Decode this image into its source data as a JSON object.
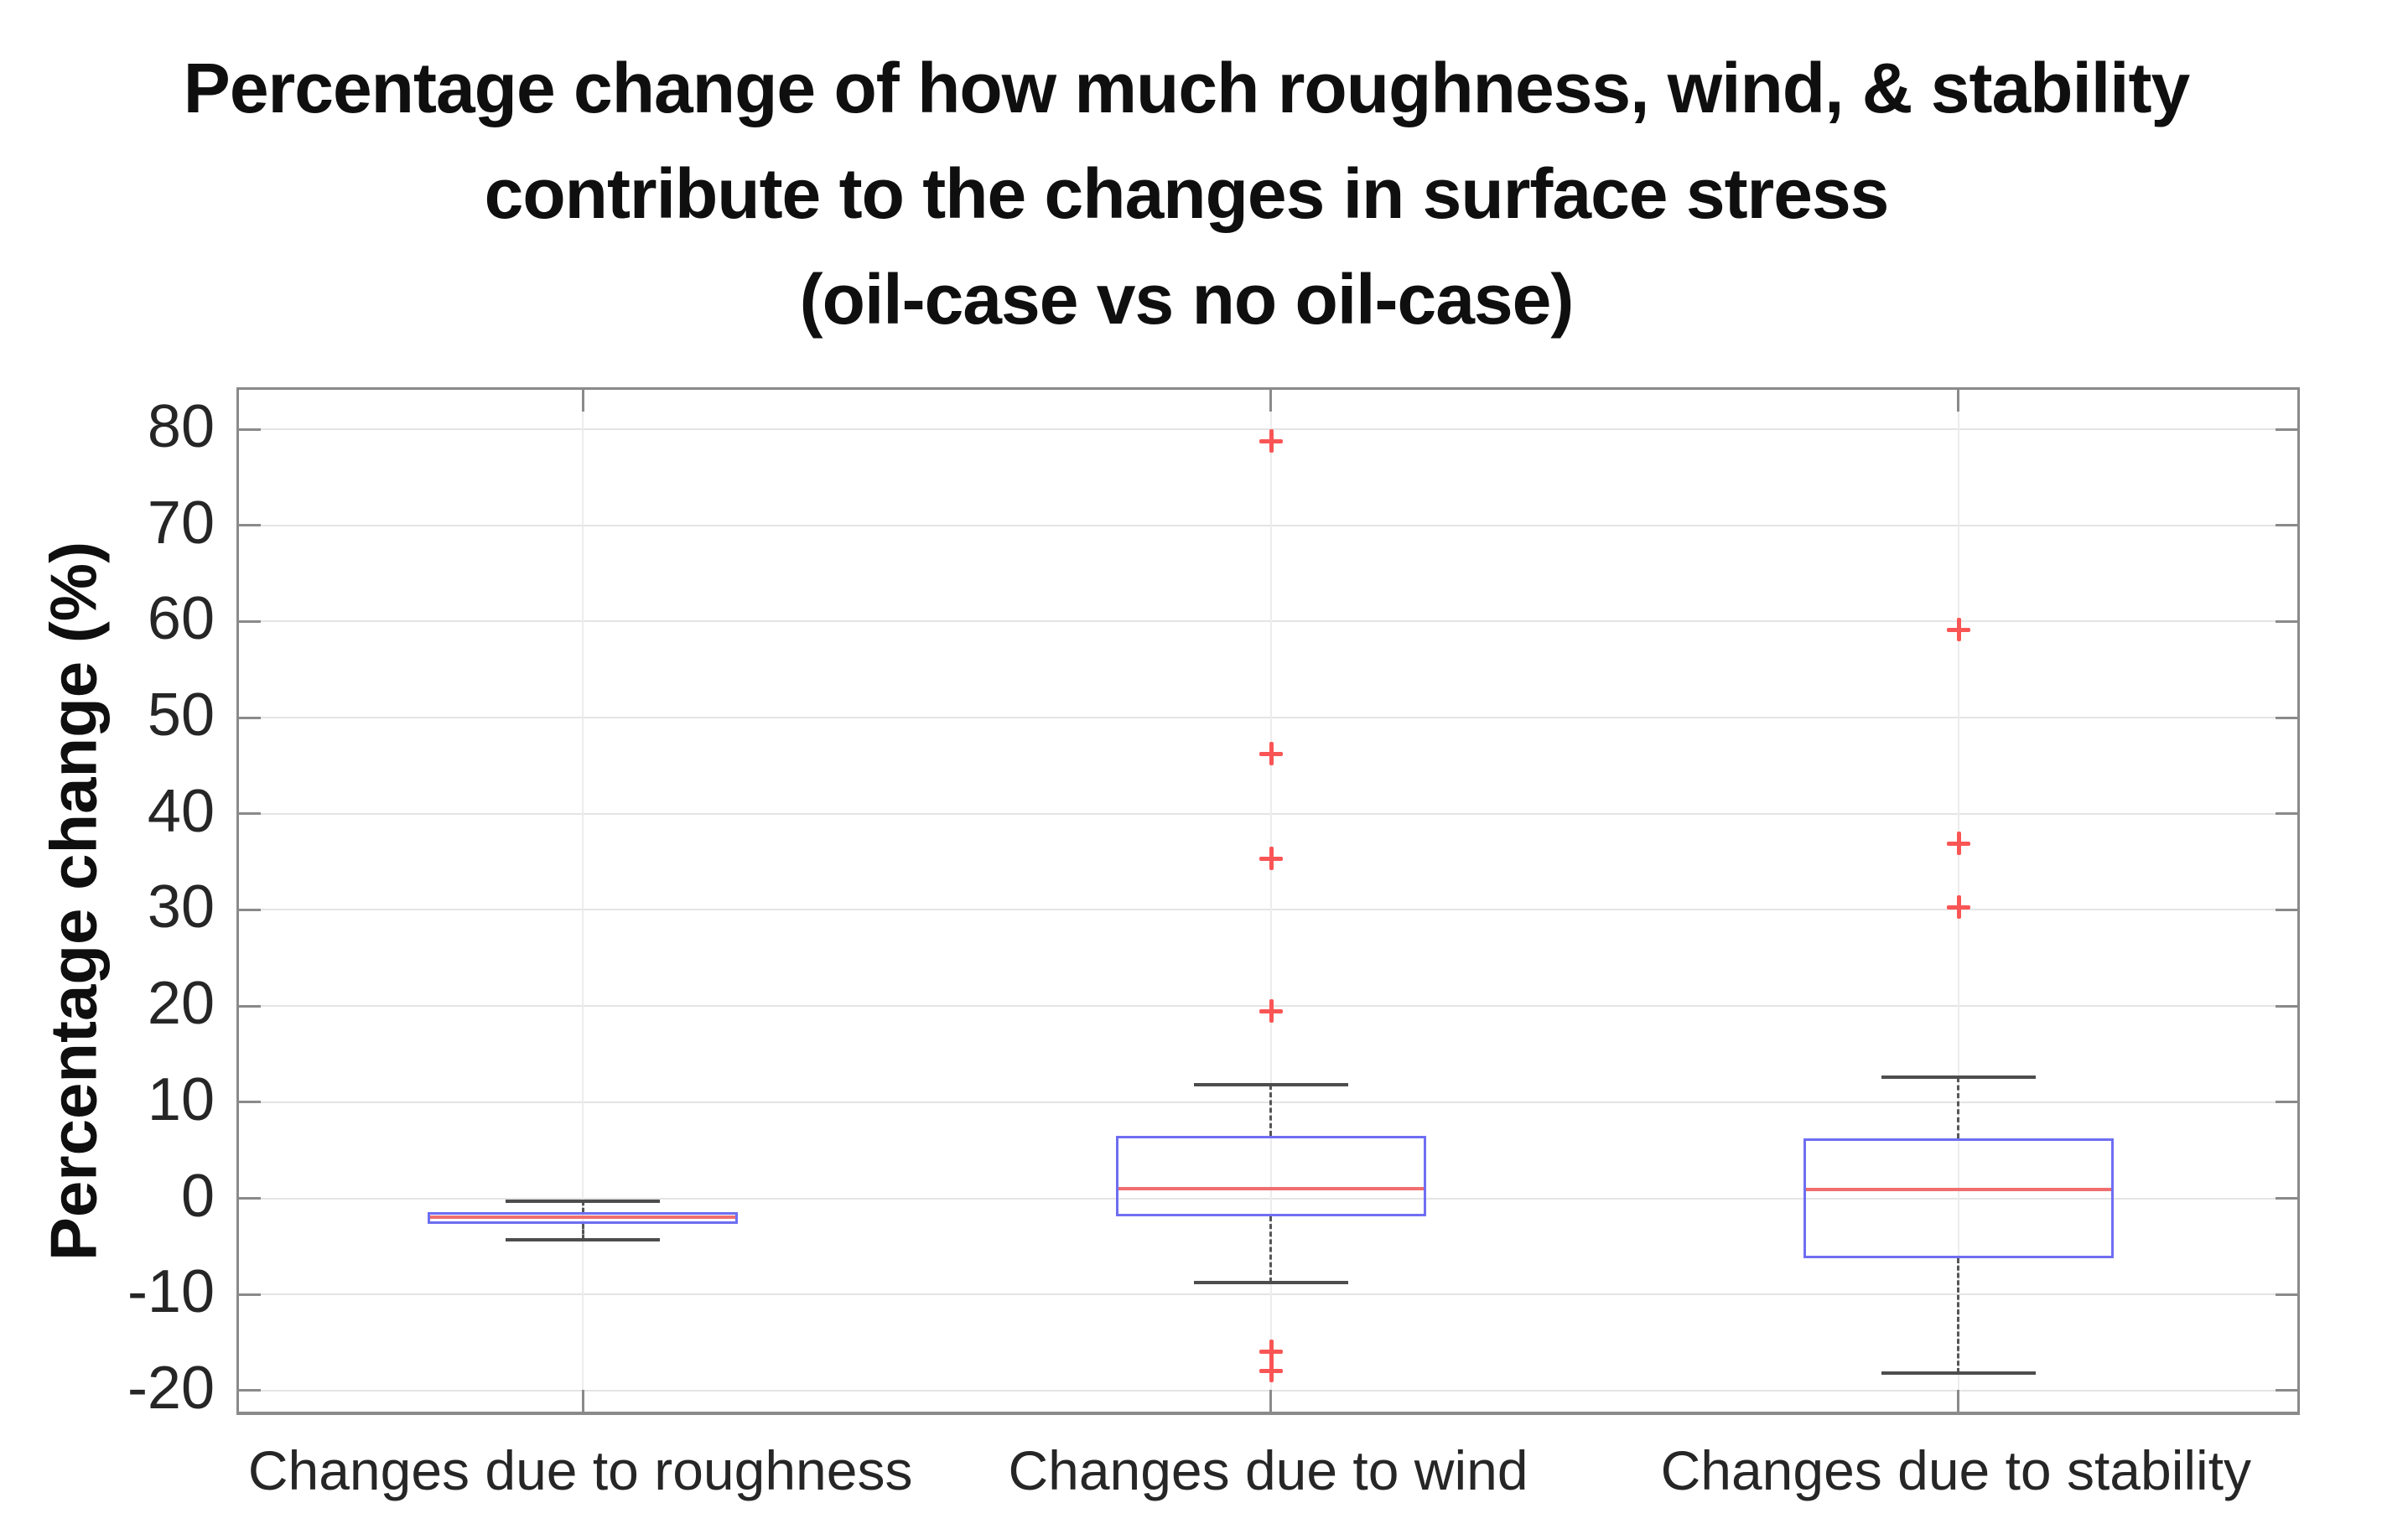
{
  "figure": {
    "title_lines": [
      "Percentage change of how much roughness, wind, & stability",
      "contribute to the changes in surface stress",
      "(oil-case vs no oil-case)"
    ],
    "ylabel": "Percentage change (%)"
  },
  "chart_data": {
    "type": "boxplot",
    "title": "Percentage change of how much roughness, wind, & stability contribute to the changes in surface stress (oil-case vs no oil-case)",
    "xlabel": "",
    "ylabel": "Percentage change (%)",
    "ylim": [
      -22.8,
      84.1
    ],
    "yticks": [
      -20,
      -10,
      0,
      10,
      20,
      30,
      40,
      50,
      60,
      70,
      80
    ],
    "grid": true,
    "legend": "none",
    "categories": [
      "Changes due to roughness",
      "Changes due to wind",
      "Changes due to stability"
    ],
    "series": [
      {
        "name": "Changes due to roughness",
        "whisker_low": -4.3,
        "q1": -2.7,
        "median": -2.0,
        "q3": -1.4,
        "whisker_high": -0.3,
        "outliers": []
      },
      {
        "name": "Changes due to wind",
        "whisker_low": -8.8,
        "q1": -1.9,
        "median": 1.0,
        "q3": 6.5,
        "whisker_high": 11.8,
        "outliers": [
          78.8,
          46.3,
          35.4,
          19.5,
          -15.9,
          -17.9
        ]
      },
      {
        "name": "Changes due to stability",
        "whisker_low": -18.2,
        "q1": -6.2,
        "median": 0.9,
        "q3": 6.2,
        "whisker_high": 12.6,
        "outliers": [
          59.2,
          36.9,
          30.3
        ]
      }
    ],
    "colors": {
      "box": "#6e6ef2",
      "median": "#f06e6e",
      "outlier": "#fa5555",
      "whisker": "#565656",
      "whisker_cap": "#4d4d4d",
      "grid_h": "#e4e4e4",
      "grid_v": "#ececec",
      "axis": "#8a8a8a",
      "tick_text": "#262626",
      "title_text": "#0f0f0f"
    }
  }
}
